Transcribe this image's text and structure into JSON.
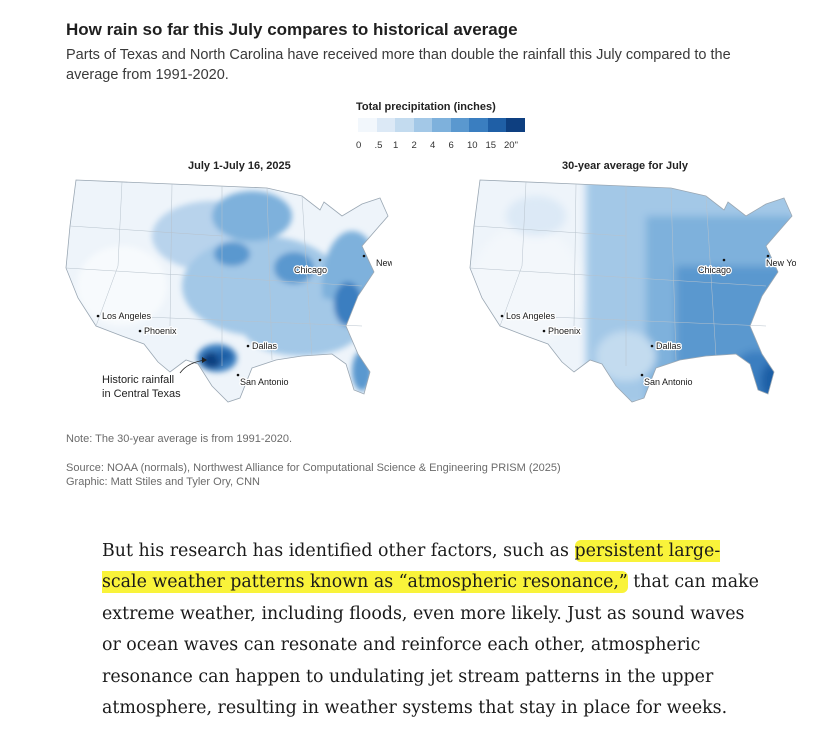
{
  "header": {
    "title": "How rain so far this July compares to historical average",
    "subtitle": "Parts of Texas and North Carolina have received more than double the rainfall this July compared to the average from 1991-2020."
  },
  "legend": {
    "title": "Total precipitation (inches)",
    "ticks": [
      "0",
      ".5",
      "1",
      "2",
      "4",
      "6",
      "10",
      "15",
      "20\""
    ],
    "colors": [
      "#f2f7fc",
      "#dce9f6",
      "#c3dbef",
      "#a3c8e7",
      "#7eb1dc",
      "#5a98cf",
      "#3a7ec0",
      "#1f5fa6",
      "#0e3f80"
    ]
  },
  "maps": {
    "left": {
      "title": "July 1-July 16, 2025"
    },
    "right": {
      "title": "30-year average for July"
    }
  },
  "cities": {
    "los_angeles": "Los Angeles",
    "phoenix": "Phoenix",
    "dallas": "Dallas",
    "san_antonio": "San Antonio",
    "chicago": "Chicago",
    "new_york": "New York"
  },
  "annotation": {
    "line1": "Historic rainfall",
    "line2": "in Central Texas"
  },
  "note": "Note: The 30-year average is from 1991-2020.",
  "source": {
    "line1": "Source: NOAA (normals), Northwest Alliance for Computational Science & Engineering PRISM (2025)",
    "line2": "Graphic: Matt Stiles and Tyler Ory, CNN"
  },
  "article": {
    "p1_before": "But his research has identified other factors, such as ",
    "p1_highlight": "persistent large-scale weather patterns known as “atmospheric resonance,”",
    "p1_after": " that can make extreme weather, including floods, even more likely. Just as sound waves or ocean waves can resonate and reinforce each other, atmospheric resonance can happen to undulating jet stream patterns in the upper atmosphere, resulting in weather systems that stay in place for weeks."
  }
}
